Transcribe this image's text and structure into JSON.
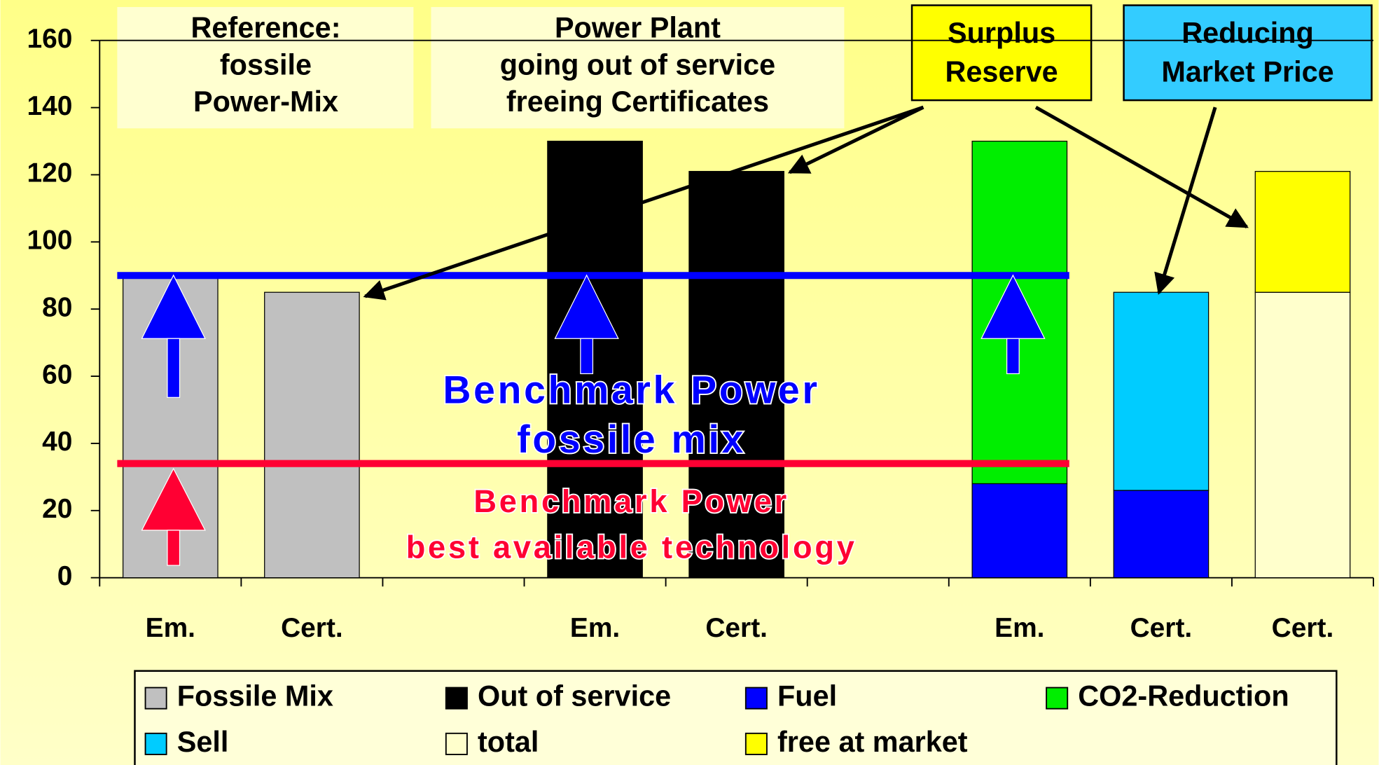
{
  "chart_data": {
    "type": "bar",
    "stacked": true,
    "categories": [
      "Em.",
      "Cert.",
      null,
      "Em.",
      "Cert.",
      null,
      "Em.",
      "Cert.",
      "Cert."
    ],
    "series": [
      {
        "name": "Fossile Mix",
        "color": "#c0c0c0",
        "values": [
          90,
          85,
          null,
          null,
          null,
          null,
          null,
          null,
          null
        ]
      },
      {
        "name": "Out of service",
        "color": "#000000",
        "values": [
          null,
          null,
          null,
          130,
          121,
          null,
          null,
          null,
          null
        ]
      },
      {
        "name": "Fuel",
        "color": "#0000ff",
        "values": [
          null,
          null,
          null,
          null,
          null,
          null,
          28,
          26,
          null
        ]
      },
      {
        "name": "CO2-Reduction",
        "color": "#00ee00",
        "values": [
          null,
          null,
          null,
          null,
          null,
          null,
          102,
          null,
          null
        ]
      },
      {
        "name": "Sell",
        "color": "#00ccff",
        "values": [
          null,
          null,
          null,
          null,
          null,
          null,
          null,
          59,
          null
        ]
      },
      {
        "name": "total",
        "color": "#ffffcc",
        "values": [
          null,
          null,
          null,
          null,
          null,
          null,
          null,
          null,
          85
        ]
      },
      {
        "name": "free at market",
        "color": "#ffff00",
        "values": [
          null,
          null,
          null,
          null,
          null,
          null,
          null,
          null,
          36
        ]
      }
    ],
    "ylim": [
      0,
      160
    ],
    "yticks": [
      0,
      20,
      40,
      60,
      80,
      100,
      120,
      140,
      160
    ],
    "grid": false,
    "legend": "bottom",
    "reference_lines": [
      {
        "value": 90,
        "color": "#0000ff",
        "label": [
          "Benchmark Power",
          "fossile mix"
        ]
      },
      {
        "value": 34,
        "color": "#ff0033",
        "label": [
          "Benchmark Power",
          "best available technology"
        ]
      }
    ],
    "annotations": [
      {
        "lines": [
          "Reference:",
          "fossile",
          "Power-Mix"
        ]
      },
      {
        "lines": [
          "Power Plant",
          "going out of service",
          "freeing Certificates"
        ]
      },
      {
        "lines": [
          "Surplus",
          "Reserve"
        ]
      },
      {
        "lines": [
          "Reducing",
          "Market Price"
        ]
      }
    ]
  }
}
